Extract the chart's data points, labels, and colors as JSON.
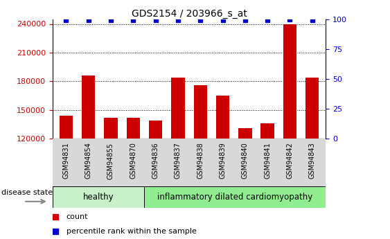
{
  "title": "GDS2154 / 203966_s_at",
  "samples": [
    "GSM94831",
    "GSM94854",
    "GSM94855",
    "GSM94870",
    "GSM94836",
    "GSM94837",
    "GSM94838",
    "GSM94839",
    "GSM94840",
    "GSM94841",
    "GSM94842",
    "GSM94843"
  ],
  "counts": [
    144000,
    186000,
    142000,
    142000,
    139000,
    184000,
    176000,
    165000,
    131000,
    136000,
    240000,
    184000
  ],
  "percentiles": [
    99,
    99,
    99,
    99,
    99,
    99,
    99,
    99,
    99,
    99,
    100,
    99
  ],
  "ylim_left": [
    120000,
    245000
  ],
  "ylim_right": [
    0,
    100
  ],
  "yticks_left": [
    120000,
    150000,
    180000,
    210000,
    240000
  ],
  "yticks_right": [
    0,
    25,
    50,
    75,
    100
  ],
  "bar_color": "#cc0000",
  "dot_color": "#0000cc",
  "healthy_label": "healthy",
  "idc_label": "inflammatory dilated cardiomyopathy",
  "disease_state_label": "disease state",
  "legend_count": "count",
  "legend_percentile": "percentile rank within the sample",
  "healthy_color": "#c8f0c8",
  "idc_color": "#90ee90",
  "tick_bg_color": "#d8d8d8",
  "bar_color_legend": "#cc0000",
  "dot_color_legend": "#0000cc",
  "tick_label_color_left": "#cc0000",
  "tick_label_color_right": "#0000cc",
  "background_color": "#ffffff",
  "n_healthy": 4,
  "n_total": 12
}
